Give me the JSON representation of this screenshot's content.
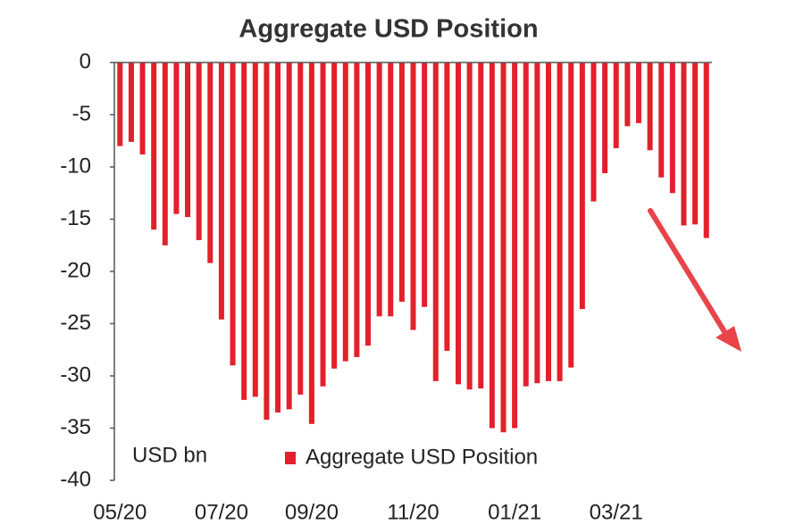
{
  "chart_data": {
    "type": "bar",
    "title": "Aggregate USD Position",
    "annotation": "USD bn",
    "series": [
      {
        "name": "Aggregate USD Position",
        "color": "#e3202b",
        "values": [
          -8,
          -7.6,
          -8.8,
          -16,
          -17.5,
          -14.5,
          -14.8,
          -17,
          -19.2,
          -24.6,
          -29,
          -32.3,
          -32,
          -34.2,
          -33.5,
          -33.2,
          -31.8,
          -34.6,
          -31,
          -29.3,
          -28.6,
          -28.2,
          -27.1,
          -24.3,
          -24.3,
          -22.9,
          -25.6,
          -23.4,
          -30.5,
          -27.6,
          -30.8,
          -31.3,
          -31.2,
          -35,
          -35.4,
          -35,
          -31,
          -30.7,
          -30.5,
          -30.5,
          -29.2,
          -23.6,
          -13.3,
          -10.6,
          -8.2,
          -6.1,
          -5.8,
          -8.4,
          -11,
          -12.5,
          -15.6,
          -15.5,
          -16.8
        ]
      }
    ],
    "categories": [
      "05/20",
      null,
      null,
      null,
      null,
      null,
      null,
      null,
      null,
      "07/20",
      null,
      null,
      null,
      null,
      null,
      null,
      null,
      "09/20",
      null,
      null,
      null,
      null,
      null,
      null,
      null,
      null,
      "11/20",
      null,
      null,
      null,
      null,
      null,
      null,
      null,
      null,
      "01/21",
      null,
      null,
      null,
      null,
      null,
      null,
      null,
      null,
      "03/21",
      null,
      null,
      null,
      null,
      null,
      null,
      null,
      null
    ],
    "ylim": [
      -40,
      0
    ],
    "yticks": [
      0,
      -5,
      -10,
      -15,
      -20,
      -25,
      -30,
      -35,
      -40
    ]
  }
}
